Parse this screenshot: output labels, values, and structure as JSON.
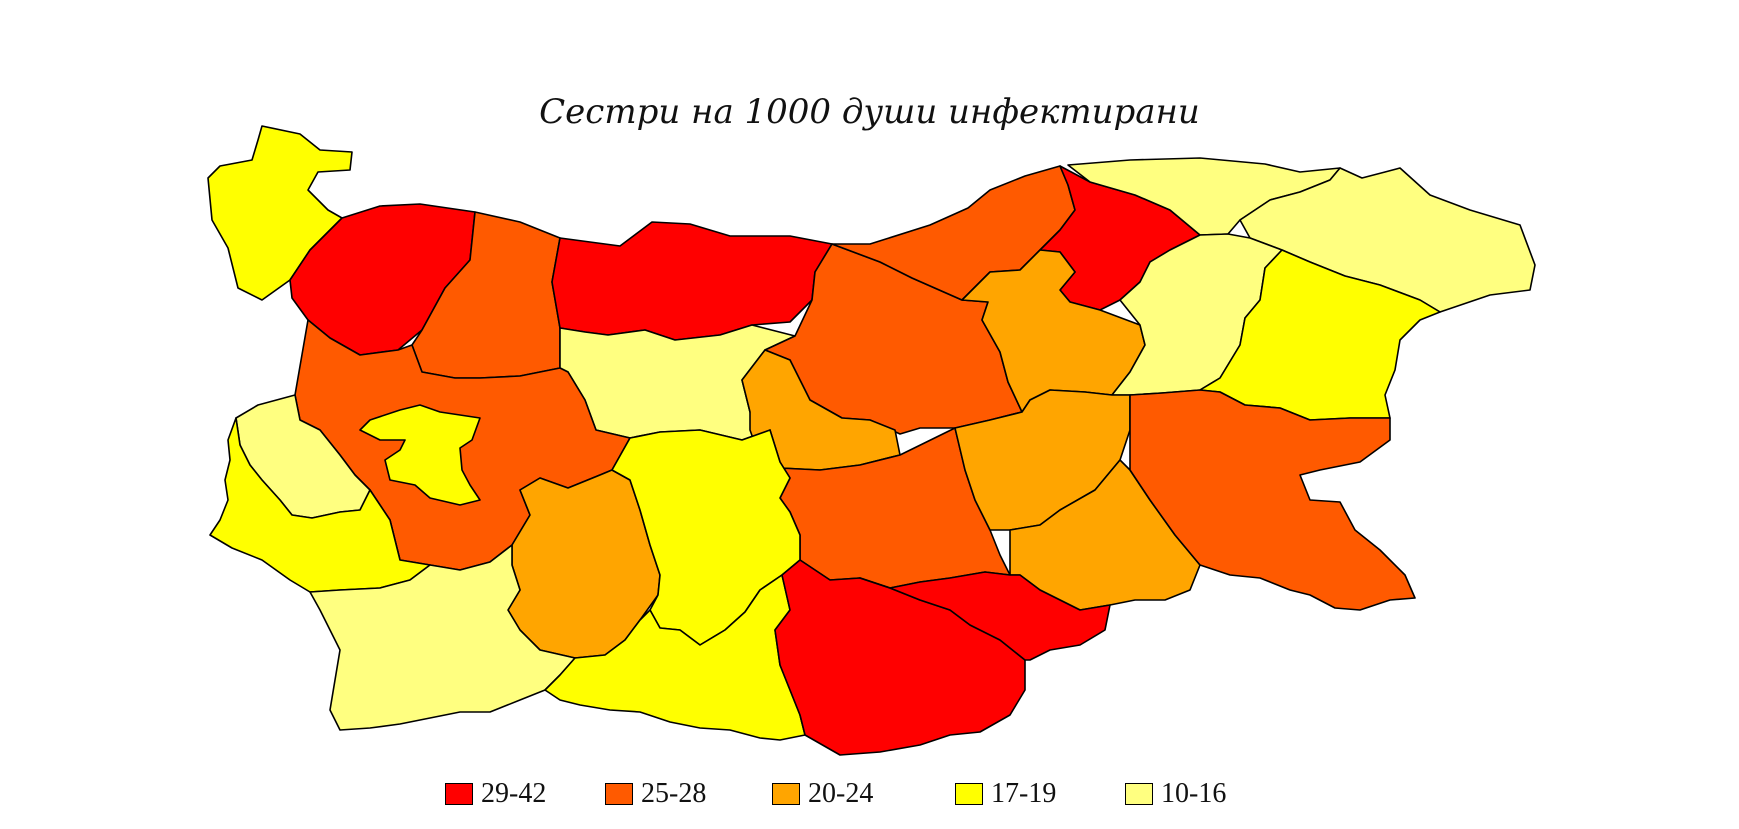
{
  "title": "Сестри на 1000 души инфектирани",
  "colors": {
    "c1": "#ff0000",
    "c2": "#ff5a00",
    "c3": "#ffa500",
    "c4": "#ffff00",
    "c5": "#ffff80"
  },
  "legend": [
    {
      "label": "29-42",
      "color": "#ff0000"
    },
    {
      "label": "25-28",
      "color": "#ff5a00"
    },
    {
      "label": "20-24",
      "color": "#ffa500"
    },
    {
      "label": "17-19",
      "color": "#ffff00"
    },
    {
      "label": "10-16",
      "color": "#ffff80"
    }
  ],
  "regions": [
    {
      "id": "vidin",
      "class": "17-19"
    },
    {
      "id": "montana",
      "class": "29-42"
    },
    {
      "id": "vratsa",
      "class": "25-28"
    },
    {
      "id": "pleven",
      "class": "29-42"
    },
    {
      "id": "lovech",
      "class": "10-16"
    },
    {
      "id": "veliko-tarnovo",
      "class": "25-28"
    },
    {
      "id": "ruse",
      "class": "25-28"
    },
    {
      "id": "razgrad",
      "class": "29-42"
    },
    {
      "id": "silistra",
      "class": "10-16"
    },
    {
      "id": "dobrich",
      "class": "10-16"
    },
    {
      "id": "targovishte",
      "class": "20-24"
    },
    {
      "id": "shumen",
      "class": "10-16"
    },
    {
      "id": "varna",
      "class": "17-19"
    },
    {
      "id": "sofia-province",
      "class": "25-28"
    },
    {
      "id": "sofia-city",
      "class": "17-19"
    },
    {
      "id": "pernik",
      "class": "10-16"
    },
    {
      "id": "kyustendil",
      "class": "17-19"
    },
    {
      "id": "gabrovo",
      "class": "20-24"
    },
    {
      "id": "stara-zagora",
      "class": "25-28"
    },
    {
      "id": "sliven",
      "class": "20-24"
    },
    {
      "id": "yambol",
      "class": "20-24"
    },
    {
      "id": "burgas",
      "class": "25-28"
    },
    {
      "id": "pazardzhik",
      "class": "20-24"
    },
    {
      "id": "plovdiv",
      "class": "17-19"
    },
    {
      "id": "blagoevgrad",
      "class": "10-16"
    },
    {
      "id": "smolyan",
      "class": "17-19"
    },
    {
      "id": "haskovo",
      "class": "29-42"
    },
    {
      "id": "kardzhali",
      "class": "29-42"
    }
  ]
}
